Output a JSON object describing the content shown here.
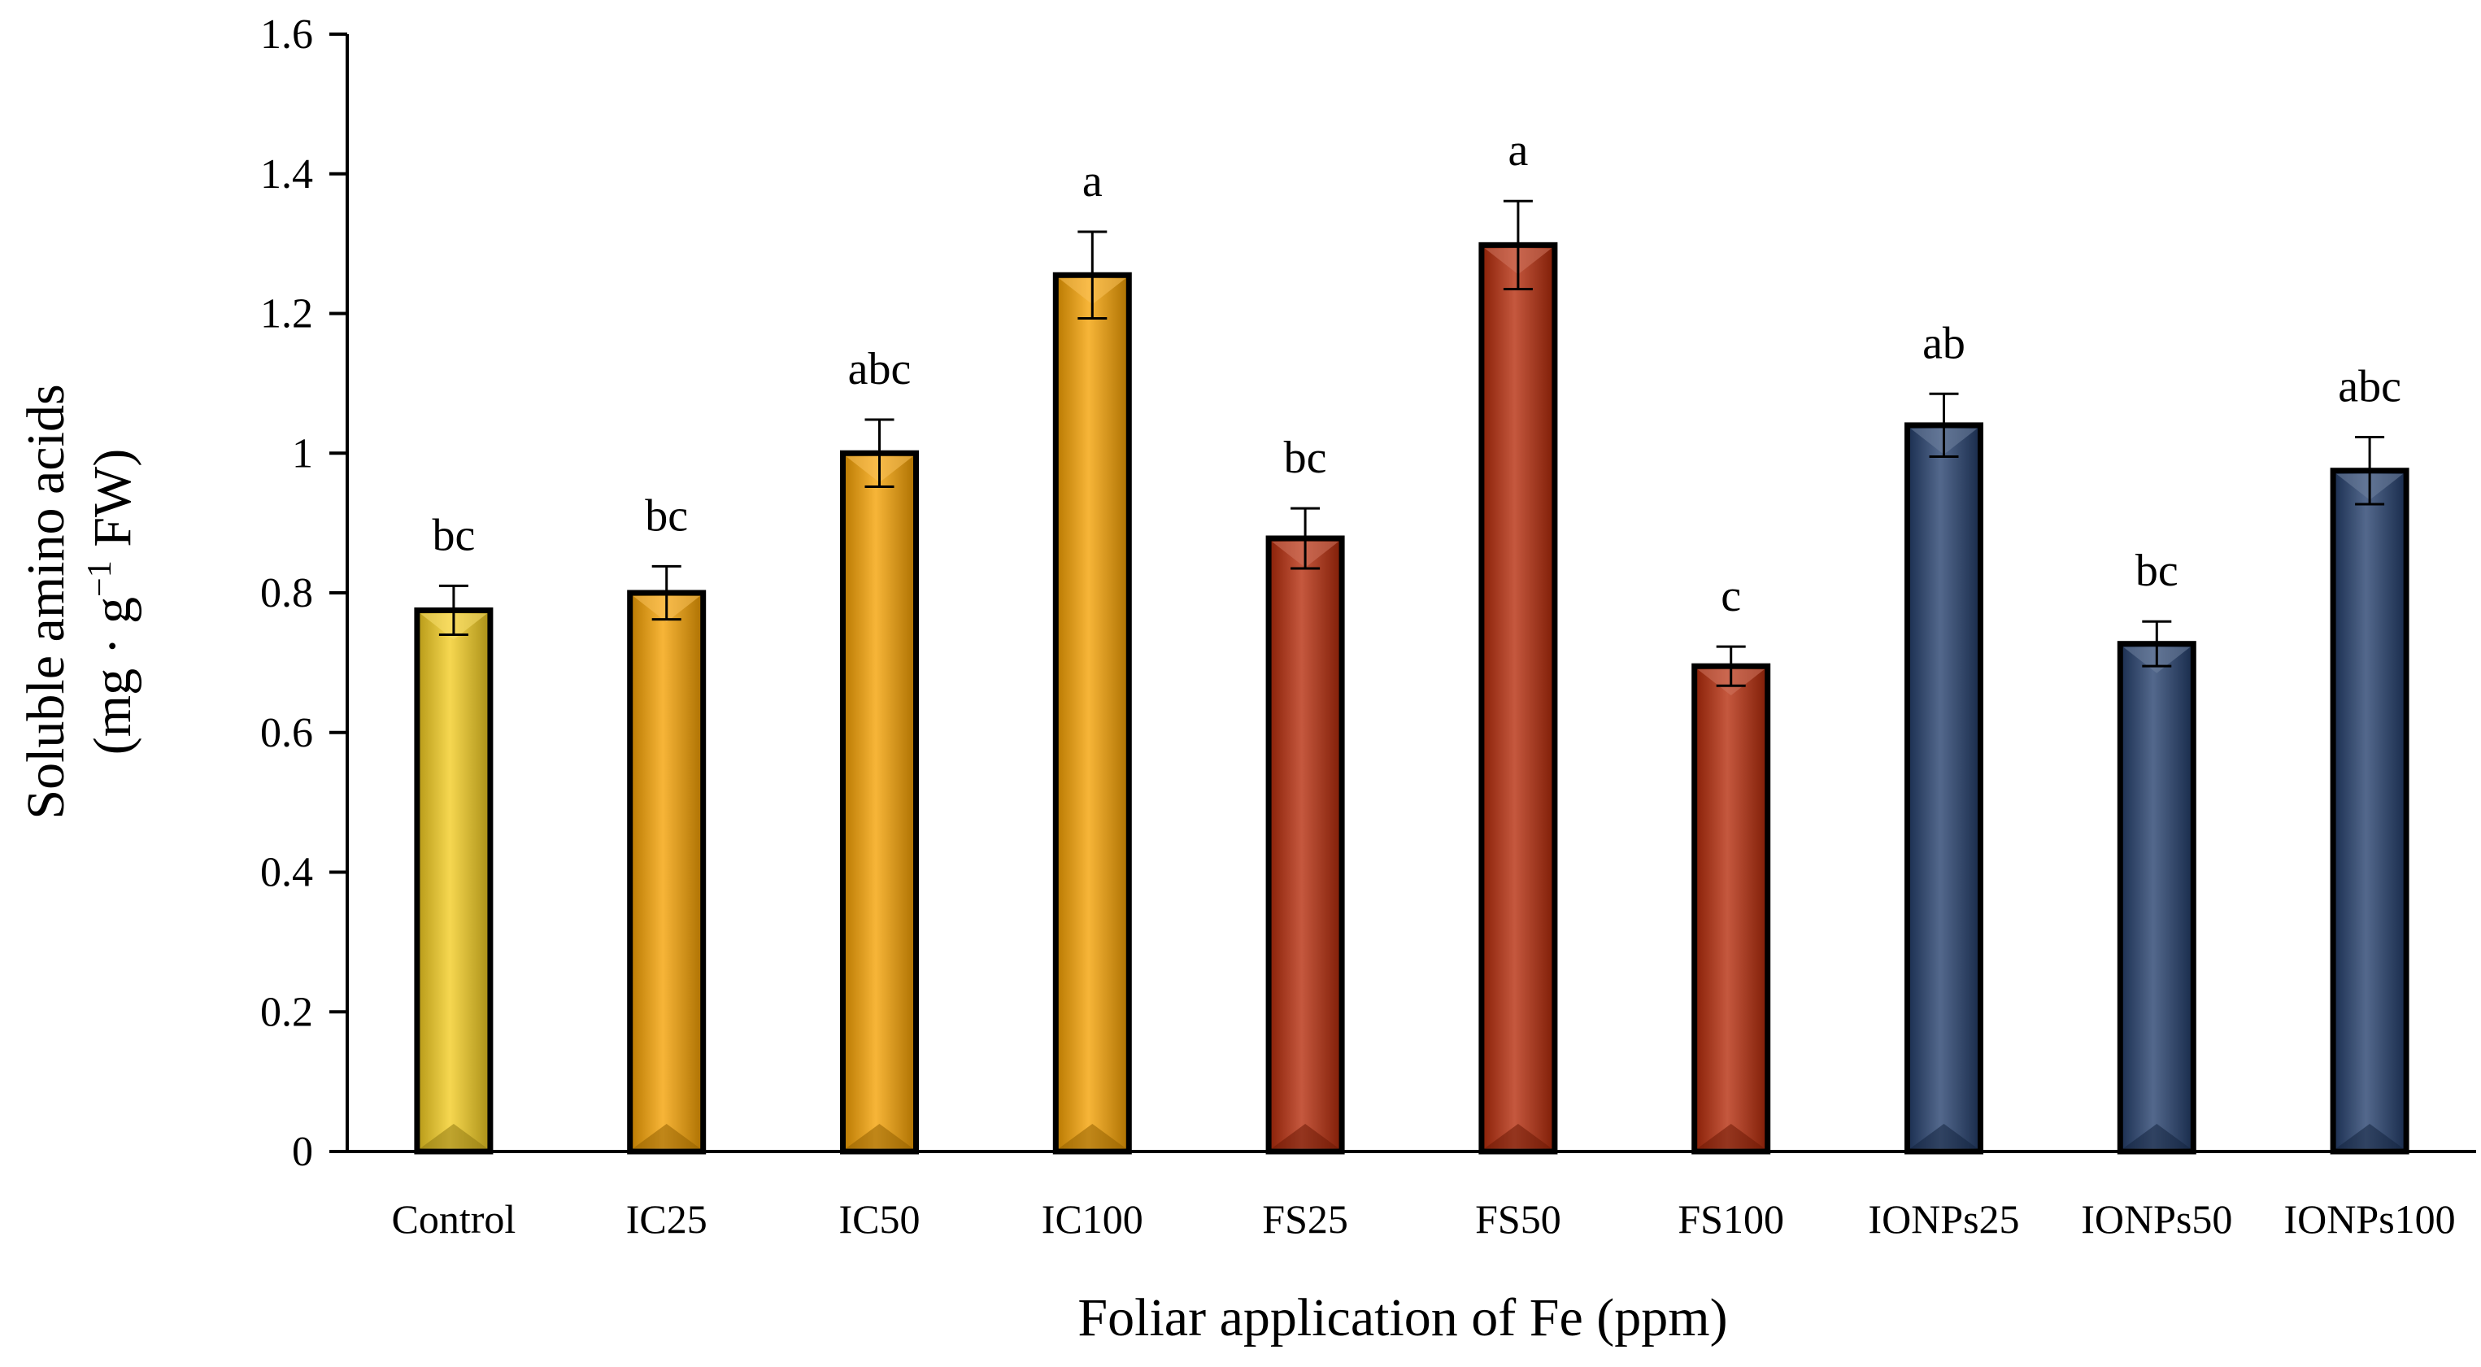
{
  "chart_data": {
    "type": "bar",
    "xlabel": "Foliar application of Fe (ppm)",
    "ylabel": {
      "line1": "Soluble amino acids",
      "line2_prefix": "(mg · g",
      "line2_sup": "−1",
      "line2_suffix": " FW)"
    },
    "ylim": [
      0,
      1.6
    ],
    "yticks": [
      "0",
      "0.2",
      "0.4",
      "0.6",
      "0.8",
      "1",
      "1.2",
      "1.4",
      "1.6"
    ],
    "grid": false,
    "legend": "none",
    "categories": [
      "Control",
      "IC25",
      "IC50",
      "IC100",
      "FS25",
      "FS50",
      "FS100",
      "IONPs25",
      "IONPs50",
      "IONPs100"
    ],
    "values": [
      0.775,
      0.8,
      1.0,
      1.255,
      0.878,
      1.298,
      0.695,
      1.04,
      0.727,
      0.975
    ],
    "errors": [
      0.035,
      0.038,
      0.048,
      0.062,
      0.043,
      0.063,
      0.028,
      0.045,
      0.032,
      0.048
    ],
    "significance": [
      "bc",
      "bc",
      "abc",
      "a",
      "bc",
      "a",
      "c",
      "ab",
      "bc",
      "abc"
    ],
    "colors": [
      "#f3cc1f",
      "#f5a000",
      "#f5a000",
      "#f5a000",
      "#b52908",
      "#b52908",
      "#b52908",
      "#223d6b",
      "#223d6b",
      "#223d6b"
    ]
  }
}
